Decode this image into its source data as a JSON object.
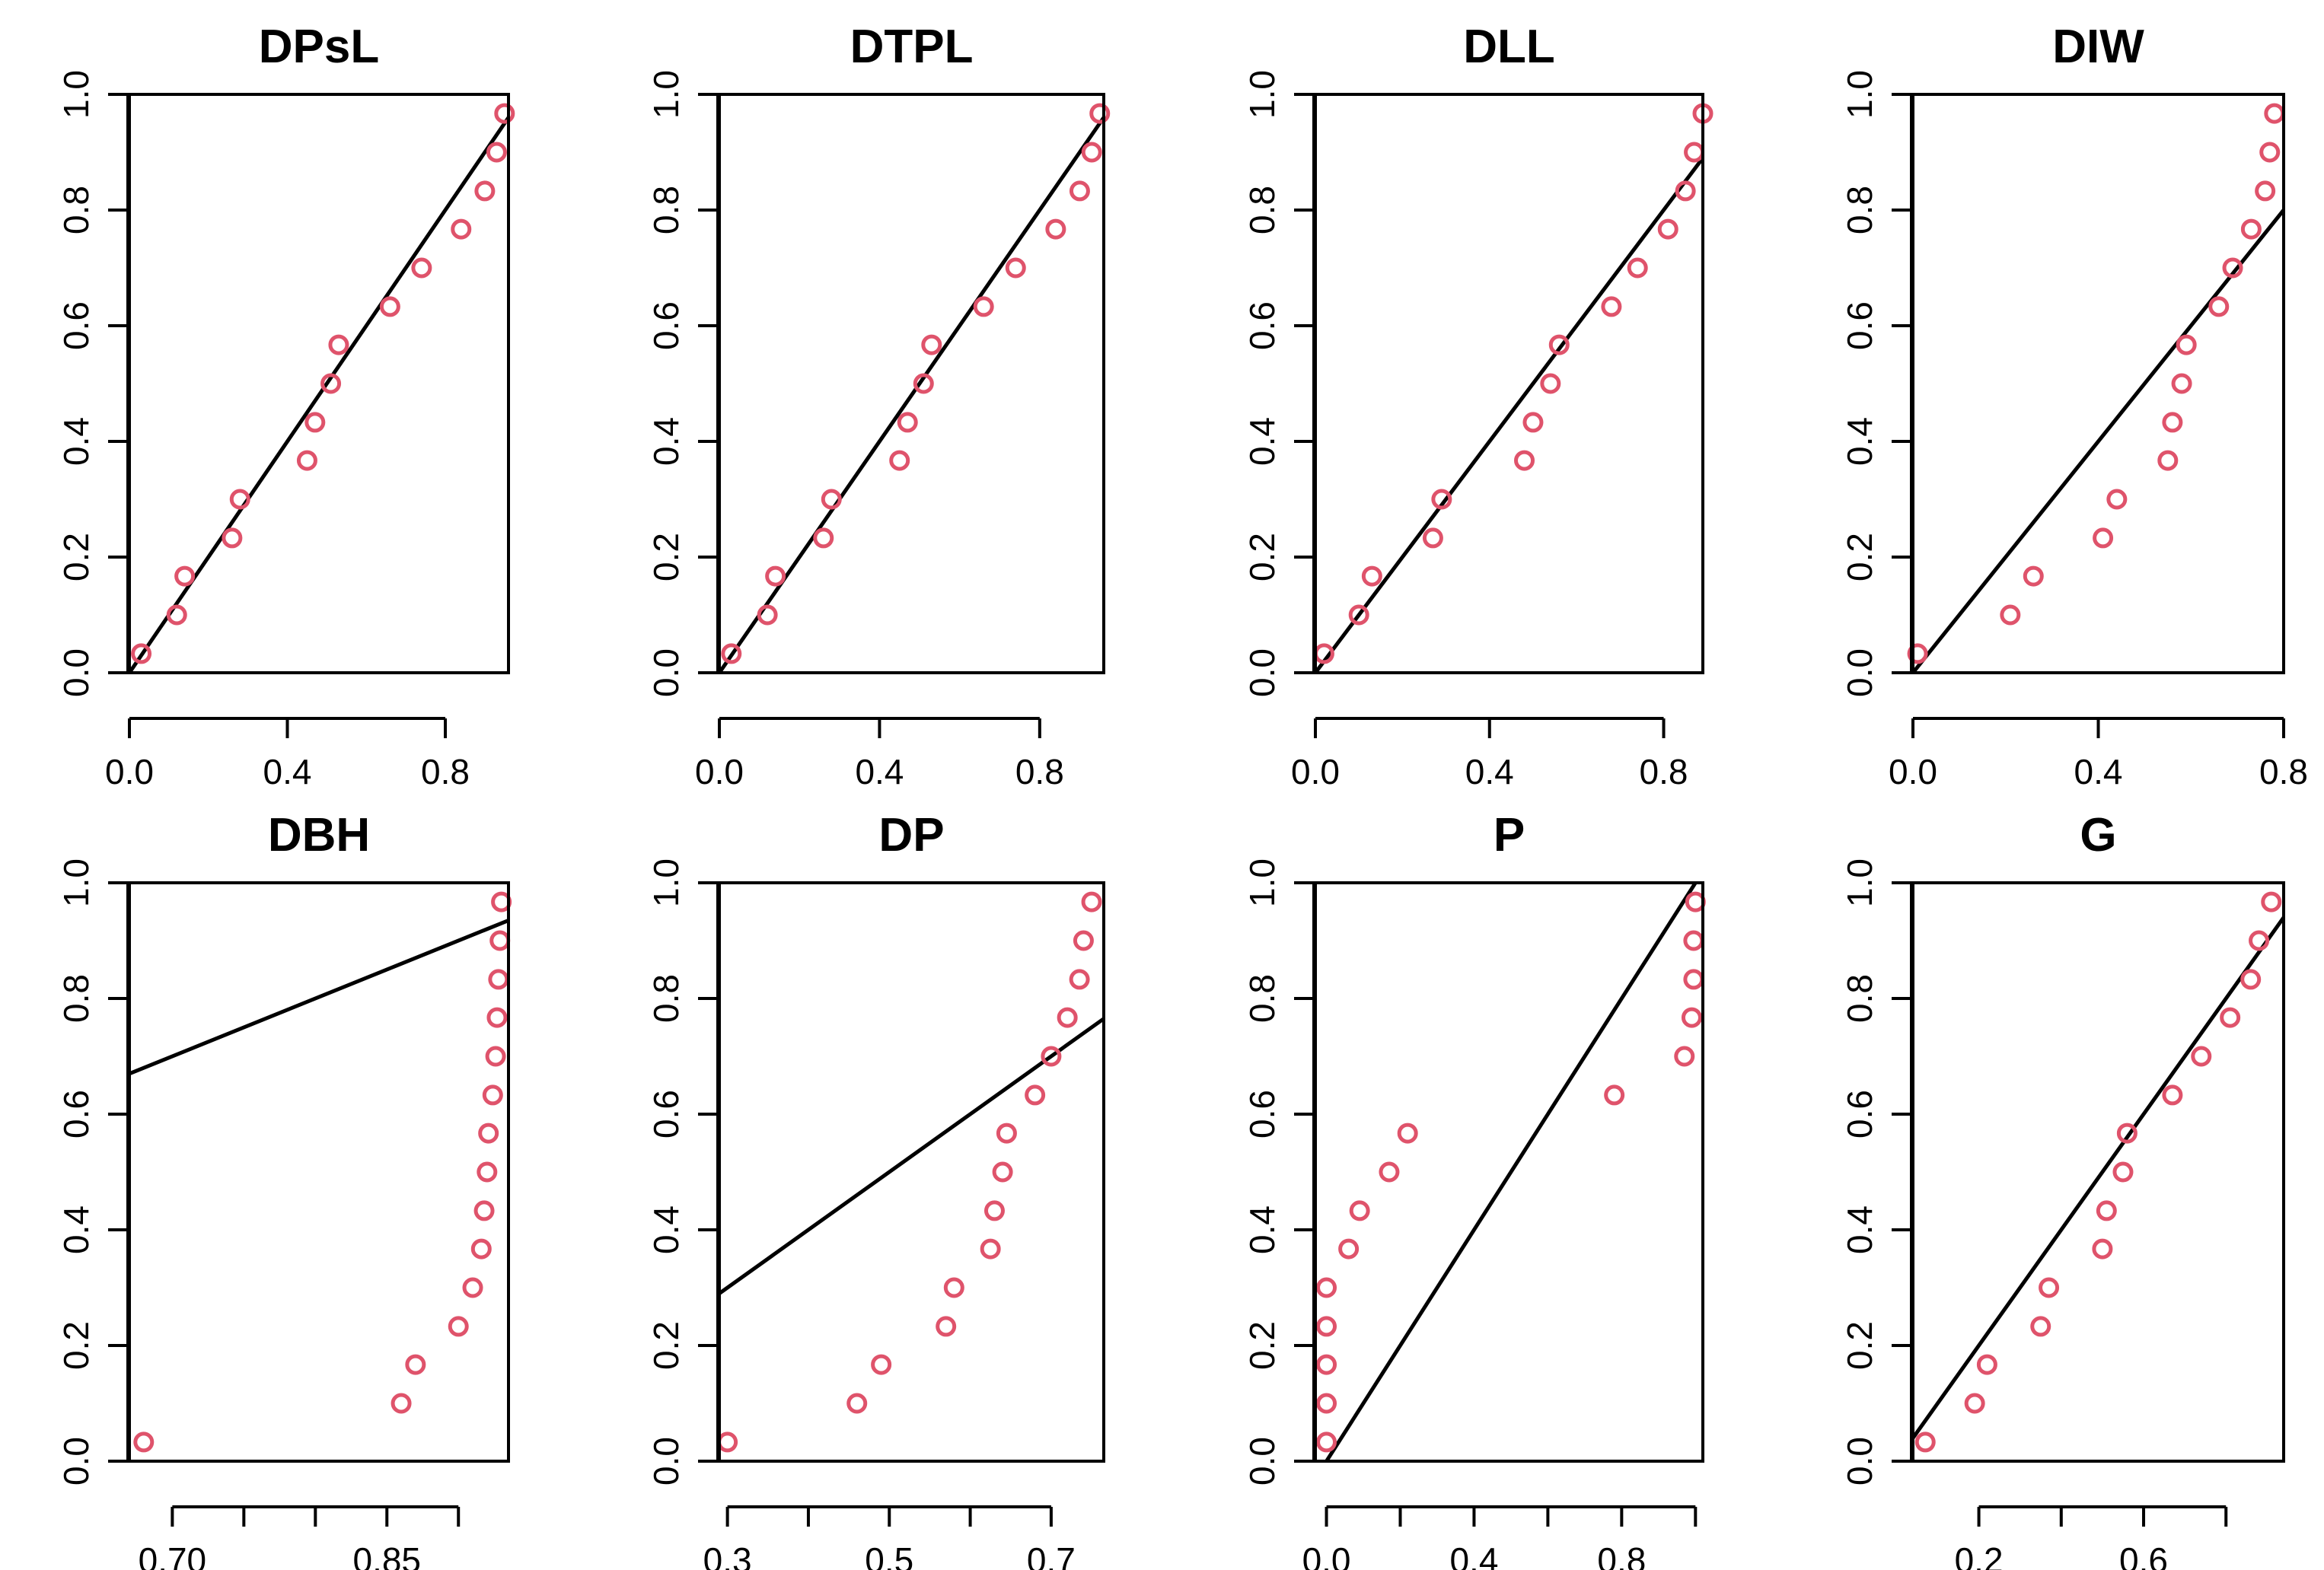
{
  "colors": {
    "points": "#DF536B",
    "line": "#000000",
    "axes": "#000000"
  },
  "chart_data": [
    {
      "type": "scatter",
      "title": "DPsL",
      "xlim": [
        0.0,
        0.96
      ],
      "ylim": [
        0,
        1
      ],
      "xticks": [
        0.0,
        0.4,
        0.8
      ],
      "xtick_labels": [
        "0.0",
        "0.4",
        "0.8"
      ],
      "yticks": [
        0,
        0.2,
        0.4,
        0.6,
        0.8,
        1
      ],
      "ytick_labels": [
        "0.0",
        "0.2",
        "0.4",
        "0.6",
        "0.8",
        "1.0"
      ],
      "points": {
        "x": [
          0.03,
          0.12,
          0.14,
          0.26,
          0.28,
          0.45,
          0.47,
          0.51,
          0.53,
          0.66,
          0.74,
          0.84,
          0.9,
          0.93,
          0.95
        ],
        "y": [
          0.033,
          0.1,
          0.167,
          0.233,
          0.3,
          0.367,
          0.433,
          0.5,
          0.567,
          0.633,
          0.7,
          0.767,
          0.833,
          0.9,
          0.967
        ]
      },
      "reference_line": {
        "intercept": 0,
        "slope": 1
      }
    },
    {
      "type": "scatter",
      "title": "DTPL",
      "xlim": [
        0.0,
        0.96
      ],
      "ylim": [
        0,
        1
      ],
      "xticks": [
        0.0,
        0.4,
        0.8
      ],
      "xtick_labels": [
        "0.0",
        "0.4",
        "0.8"
      ],
      "yticks": [
        0,
        0.2,
        0.4,
        0.6,
        0.8,
        1
      ],
      "ytick_labels": [
        "0.0",
        "0.2",
        "0.4",
        "0.6",
        "0.8",
        "1.0"
      ],
      "points": {
        "x": [
          0.03,
          0.12,
          0.14,
          0.26,
          0.28,
          0.45,
          0.47,
          0.51,
          0.53,
          0.66,
          0.74,
          0.84,
          0.9,
          0.93,
          0.95
        ],
        "y": [
          0.033,
          0.1,
          0.167,
          0.233,
          0.3,
          0.367,
          0.433,
          0.5,
          0.567,
          0.633,
          0.7,
          0.767,
          0.833,
          0.9,
          0.967
        ]
      },
      "reference_line": {
        "intercept": 0,
        "slope": 1
      }
    },
    {
      "type": "scatter",
      "title": "DLL",
      "xlim": [
        0.0,
        0.89
      ],
      "ylim": [
        0,
        1
      ],
      "xticks": [
        0.0,
        0.4,
        0.8
      ],
      "xtick_labels": [
        "0.0",
        "0.4",
        "0.8"
      ],
      "yticks": [
        0,
        0.2,
        0.4,
        0.6,
        0.8,
        1
      ],
      "ytick_labels": [
        "0.0",
        "0.2",
        "0.4",
        "0.6",
        "0.8",
        "1.0"
      ],
      "points": {
        "x": [
          0.02,
          0.1,
          0.13,
          0.27,
          0.29,
          0.48,
          0.5,
          0.54,
          0.56,
          0.68,
          0.74,
          0.81,
          0.85,
          0.87,
          0.89
        ],
        "y": [
          0.033,
          0.1,
          0.167,
          0.233,
          0.3,
          0.367,
          0.433,
          0.5,
          0.567,
          0.633,
          0.7,
          0.767,
          0.833,
          0.9,
          0.967
        ]
      },
      "reference_line": {
        "intercept": 0,
        "slope": 1
      }
    },
    {
      "type": "scatter",
      "title": "DIW",
      "xlim": [
        0.0,
        0.8
      ],
      "ylim": [
        0,
        1
      ],
      "xticks": [
        0.0,
        0.4,
        0.8
      ],
      "xtick_labels": [
        "0.0",
        "0.4",
        "0.8"
      ],
      "yticks": [
        0,
        0.2,
        0.4,
        0.6,
        0.8,
        1
      ],
      "ytick_labels": [
        "0.0",
        "0.2",
        "0.4",
        "0.6",
        "0.8",
        "1.0"
      ],
      "points": {
        "x": [
          0.01,
          0.21,
          0.26,
          0.41,
          0.44,
          0.55,
          0.56,
          0.58,
          0.59,
          0.66,
          0.69,
          0.73,
          0.76,
          0.77,
          0.78
        ],
        "y": [
          0.033,
          0.1,
          0.167,
          0.233,
          0.3,
          0.367,
          0.433,
          0.5,
          0.567,
          0.633,
          0.7,
          0.767,
          0.833,
          0.9,
          0.967
        ]
      },
      "reference_line": {
        "intercept": 0,
        "slope": 1
      }
    },
    {
      "type": "scatter",
      "title": "DBH",
      "xlim": [
        0.67,
        0.935
      ],
      "ylim": [
        0,
        1
      ],
      "xticks": [
        0.7,
        0.75,
        0.8,
        0.85,
        0.9
      ],
      "xtick_labels": [
        "0.70",
        "",
        "",
        "0.85",
        ""
      ],
      "yticks": [
        0,
        0.2,
        0.4,
        0.6,
        0.8,
        1
      ],
      "ytick_labels": [
        "0.0",
        "0.2",
        "0.4",
        "0.6",
        "0.8",
        "1.0"
      ],
      "points": {
        "x": [
          0.68,
          0.86,
          0.87,
          0.9,
          0.91,
          0.916,
          0.918,
          0.92,
          0.921,
          0.924,
          0.926,
          0.927,
          0.928,
          0.929,
          0.93
        ],
        "y": [
          0.033,
          0.1,
          0.167,
          0.233,
          0.3,
          0.367,
          0.433,
          0.5,
          0.567,
          0.633,
          0.7,
          0.767,
          0.833,
          0.9,
          0.967
        ]
      },
      "reference_line": {
        "intercept": 0,
        "slope": 1
      }
    },
    {
      "type": "scatter",
      "title": "DP",
      "xlim": [
        0.29,
        0.765
      ],
      "ylim": [
        0,
        1
      ],
      "xticks": [
        0.3,
        0.4,
        0.5,
        0.6,
        0.7
      ],
      "xtick_labels": [
        "0.3",
        "",
        "0.5",
        "",
        "0.7"
      ],
      "yticks": [
        0,
        0.2,
        0.4,
        0.6,
        0.8,
        1
      ],
      "ytick_labels": [
        "0.0",
        "0.2",
        "0.4",
        "0.6",
        "0.8",
        "1.0"
      ],
      "points": {
        "x": [
          0.3,
          0.46,
          0.49,
          0.57,
          0.58,
          0.625,
          0.63,
          0.64,
          0.645,
          0.68,
          0.7,
          0.72,
          0.735,
          0.74,
          0.75
        ],
        "y": [
          0.033,
          0.1,
          0.167,
          0.233,
          0.3,
          0.367,
          0.433,
          0.5,
          0.567,
          0.633,
          0.7,
          0.767,
          0.833,
          0.9,
          0.967
        ]
      },
      "reference_line": {
        "intercept": 0,
        "slope": 1
      }
    },
    {
      "type": "scatter",
      "title": "P",
      "xlim": [
        -0.03,
        1.02
      ],
      "ylim": [
        0,
        1
      ],
      "xticks": [
        0.0,
        0.2,
        0.4,
        0.6,
        0.8,
        1.0
      ],
      "xtick_labels": [
        "0.0",
        "",
        "0.4",
        "",
        "0.8",
        ""
      ],
      "yticks": [
        0,
        0.2,
        0.4,
        0.6,
        0.8,
        1
      ],
      "ytick_labels": [
        "0.0",
        "0.2",
        "0.4",
        "0.6",
        "0.8",
        "1.0"
      ],
      "points": {
        "x": [
          0.0,
          0.0,
          0.0,
          0.0,
          0.0,
          0.06,
          0.09,
          0.17,
          0.22,
          0.78,
          0.97,
          0.99,
          0.995,
          0.995,
          1.0
        ],
        "y": [
          0.033,
          0.1,
          0.167,
          0.233,
          0.3,
          0.367,
          0.433,
          0.5,
          0.567,
          0.633,
          0.7,
          0.767,
          0.833,
          0.9,
          0.967
        ]
      },
      "reference_line": {
        "intercept": 0,
        "slope": 1
      }
    },
    {
      "type": "scatter",
      "title": "G",
      "xlim": [
        0.04,
        0.94
      ],
      "ylim": [
        0,
        1
      ],
      "xticks": [
        0.2,
        0.4,
        0.6,
        0.8
      ],
      "xtick_labels": [
        "0.2",
        "",
        "0.6",
        ""
      ],
      "yticks": [
        0,
        0.2,
        0.4,
        0.6,
        0.8,
        1
      ],
      "ytick_labels": [
        "0.0",
        "0.2",
        "0.4",
        "0.6",
        "0.8",
        "1.0"
      ],
      "points": {
        "x": [
          0.07,
          0.19,
          0.22,
          0.35,
          0.37,
          0.5,
          0.51,
          0.55,
          0.56,
          0.67,
          0.74,
          0.81,
          0.86,
          0.88,
          0.91
        ],
        "y": [
          0.033,
          0.1,
          0.167,
          0.233,
          0.3,
          0.367,
          0.433,
          0.5,
          0.567,
          0.633,
          0.7,
          0.767,
          0.833,
          0.9,
          0.967
        ]
      },
      "reference_line": {
        "intercept": 0,
        "slope": 1
      }
    }
  ]
}
